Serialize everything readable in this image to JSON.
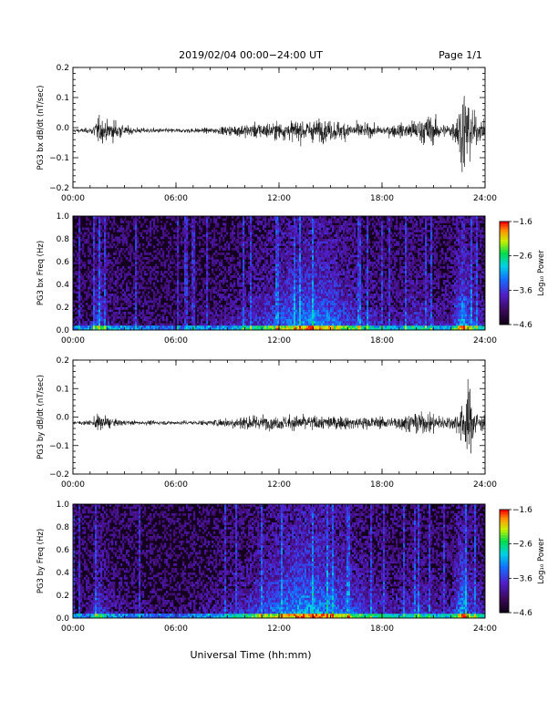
{
  "header": {
    "title": "2019/02/04  00:00−24:00 UT",
    "page": "Page 1/1"
  },
  "chart_data": [
    {
      "type": "line",
      "ylabel": "PG3 bx dB/dt (nT/sec)",
      "xlim": [
        0,
        24
      ],
      "ylim": [
        -0.2,
        0.2
      ],
      "yticks": [
        "−0.2",
        "−0.1",
        "0.0",
        "0.1",
        "0.2"
      ],
      "xticks": [
        "00:00",
        "06:00",
        "12:00",
        "18:00",
        "24:00"
      ],
      "baseline": -0.01,
      "activity": {
        "hours": [
          0,
          1,
          1.5,
          2,
          2.5,
          3,
          4,
          6,
          8,
          9,
          10,
          12,
          13,
          14,
          15,
          16,
          17,
          18,
          19,
          20,
          20.8,
          21.5,
          22,
          22.3,
          22.7,
          23,
          23.5,
          24
        ],
        "amplitude": [
          0.008,
          0.012,
          0.06,
          0.04,
          0.05,
          0.02,
          0.012,
          0.01,
          0.012,
          0.02,
          0.03,
          0.04,
          0.045,
          0.05,
          0.045,
          0.04,
          0.03,
          0.02,
          0.03,
          0.05,
          0.07,
          0.03,
          0.03,
          0.06,
          0.2,
          0.18,
          0.05,
          0.04
        ]
      }
    },
    {
      "type": "heatmap",
      "ylabel": "PG3 bx Freq (Hz)",
      "xlim": [
        0,
        24
      ],
      "ylim": [
        0,
        1.0
      ],
      "yticks": [
        "0.0",
        "0.2",
        "0.4",
        "0.6",
        "0.8",
        "1.0"
      ],
      "xticks": [
        "00:00",
        "06:00",
        "12:00",
        "18:00",
        "24:00"
      ],
      "colorbar": {
        "label": "Log₁₀ Power",
        "range": [
          -4.6,
          -1.6
        ],
        "ticks": [
          "−1.6",
          "−2.6",
          "−3.6",
          "−4.6"
        ]
      },
      "activity": {
        "hours": [
          0,
          1,
          1.5,
          2,
          3,
          6,
          9,
          10,
          11,
          12,
          13,
          14,
          15,
          16,
          17,
          18,
          19,
          20,
          21,
          22,
          22.7,
          23,
          24
        ],
        "level": [
          0.15,
          0.2,
          0.55,
          0.3,
          0.2,
          0.12,
          0.25,
          0.35,
          0.45,
          0.55,
          0.7,
          0.72,
          0.65,
          0.5,
          0.4,
          0.3,
          0.3,
          0.45,
          0.3,
          0.3,
          0.85,
          0.6,
          0.3
        ]
      }
    },
    {
      "type": "line",
      "ylabel": "PG3 by dB/dt (nT/sec)",
      "xlim": [
        0,
        24
      ],
      "ylim": [
        -0.2,
        0.2
      ],
      "yticks": [
        "−0.2",
        "−0.1",
        "0.0",
        "0.1",
        "0.2"
      ],
      "xticks": [
        "00:00",
        "06:00",
        "12:00",
        "18:00",
        "24:00"
      ],
      "baseline": -0.02,
      "activity": {
        "hours": [
          0,
          1,
          1.5,
          2,
          2.5,
          3,
          4,
          6,
          8,
          9,
          10,
          12,
          13,
          14,
          15,
          16,
          17,
          18,
          19,
          20,
          20.8,
          21.5,
          22,
          22.5,
          22.9,
          23.2,
          23.6,
          24
        ],
        "amplitude": [
          0.008,
          0.012,
          0.04,
          0.03,
          0.015,
          0.012,
          0.01,
          0.01,
          0.012,
          0.025,
          0.035,
          0.03,
          0.035,
          0.035,
          0.03,
          0.03,
          0.03,
          0.025,
          0.035,
          0.045,
          0.05,
          0.03,
          0.035,
          0.05,
          0.17,
          0.14,
          0.04,
          0.03
        ]
      }
    },
    {
      "type": "heatmap",
      "ylabel": "PG3 by Freq (Hz)",
      "xlim": [
        0,
        24
      ],
      "ylim": [
        0,
        1.0
      ],
      "yticks": [
        "0.0",
        "0.2",
        "0.4",
        "0.6",
        "0.8",
        "1.0"
      ],
      "xticks": [
        "00:00",
        "06:00",
        "12:00",
        "18:00",
        "24:00"
      ],
      "colorbar": {
        "label": "Log₁₀ Power",
        "range": [
          -4.6,
          -1.6
        ],
        "ticks": [
          "−1.6",
          "−2.6",
          "−3.6",
          "−4.6"
        ]
      },
      "activity": {
        "hours": [
          0,
          1,
          1.5,
          2,
          3,
          6,
          9,
          10,
          11,
          12,
          13,
          14,
          15,
          16,
          17,
          18,
          19,
          20,
          21,
          22,
          22.7,
          23,
          24
        ],
        "level": [
          0.15,
          0.2,
          0.5,
          0.3,
          0.2,
          0.12,
          0.3,
          0.4,
          0.55,
          0.62,
          0.75,
          0.78,
          0.7,
          0.55,
          0.45,
          0.35,
          0.3,
          0.45,
          0.3,
          0.3,
          0.8,
          0.55,
          0.3
        ]
      }
    }
  ],
  "xlabel": "Universal Time (hh:mm)"
}
